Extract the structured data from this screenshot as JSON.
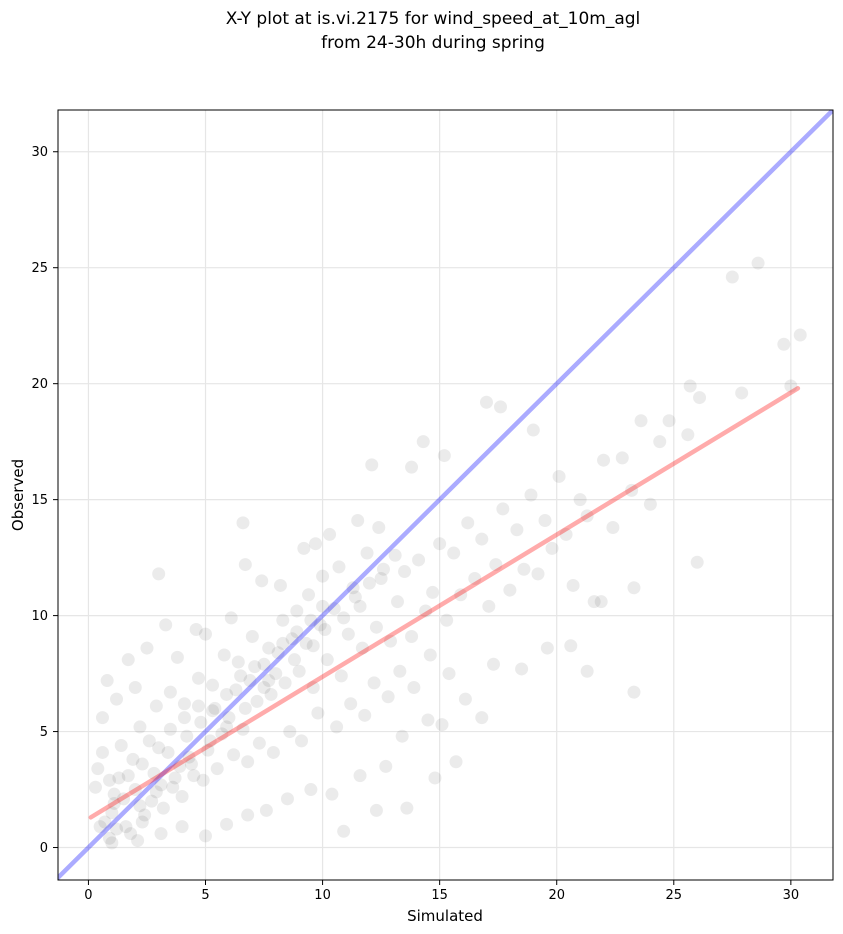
{
  "chart_data": {
    "type": "scatter",
    "title": "X-Y plot at is.vi.2175 for wind_speed_at_10m_agl",
    "subtitle": "from 24-30h during spring",
    "xlabel": "Simulated",
    "ylabel": "Observed",
    "xlim": [
      -1.3,
      31.8
    ],
    "ylim": [
      -1.4,
      31.8
    ],
    "xticks": [
      0,
      5,
      10,
      15,
      20,
      25,
      30
    ],
    "yticks": [
      0,
      5,
      10,
      15,
      20,
      25,
      30
    ],
    "grid": true,
    "point_color": "#000000",
    "point_alpha": 0.08,
    "series": [
      {
        "type": "scatter",
        "points": [
          [
            0.9,
            0.4
          ],
          [
            1.0,
            1.5
          ],
          [
            1.2,
            0.8
          ],
          [
            1.5,
            2.1
          ],
          [
            0.7,
            1.1
          ],
          [
            1.8,
            0.6
          ],
          [
            2.0,
            2.5
          ],
          [
            1.3,
            3.0
          ],
          [
            0.5,
            0.9
          ],
          [
            1.1,
            1.9
          ],
          [
            2.4,
            1.4
          ],
          [
            2.8,
            3.2
          ],
          [
            3.1,
            2.7
          ],
          [
            3.4,
            4.1
          ],
          [
            2.6,
            4.6
          ],
          [
            3.9,
            3.5
          ],
          [
            4.2,
            4.8
          ],
          [
            4.5,
            3.1
          ],
          [
            4.8,
            5.4
          ],
          [
            5.1,
            4.2
          ],
          [
            5.4,
            6.0
          ],
          [
            5.7,
            4.9
          ],
          [
            6.0,
            5.6
          ],
          [
            6.3,
            6.8
          ],
          [
            6.6,
            5.1
          ],
          [
            6.9,
            7.2
          ],
          [
            7.2,
            6.3
          ],
          [
            7.5,
            7.9
          ],
          [
            7.8,
            6.6
          ],
          [
            8.1,
            8.4
          ],
          [
            8.4,
            7.1
          ],
          [
            8.7,
            9.0
          ],
          [
            9.0,
            7.6
          ],
          [
            9.3,
            8.8
          ],
          [
            9.6,
            6.9
          ],
          [
            9.9,
            9.6
          ],
          [
            10.2,
            8.1
          ],
          [
            10.5,
            10.3
          ],
          [
            10.8,
            7.4
          ],
          [
            11.1,
            9.2
          ],
          [
            11.4,
            10.8
          ],
          [
            11.7,
            8.6
          ],
          [
            12.0,
            11.4
          ],
          [
            12.3,
            9.5
          ],
          [
            12.6,
            12.0
          ],
          [
            12.9,
            8.9
          ],
          [
            13.2,
            10.6
          ],
          [
            13.5,
            11.9
          ],
          [
            13.8,
            9.1
          ],
          [
            14.1,
            12.4
          ],
          [
            14.4,
            10.2
          ],
          [
            14.7,
            11.0
          ],
          [
            15.0,
            13.1
          ],
          [
            15.3,
            9.8
          ],
          [
            15.6,
            12.7
          ],
          [
            15.9,
            10.9
          ],
          [
            16.2,
            14.0
          ],
          [
            16.5,
            11.6
          ],
          [
            16.8,
            13.3
          ],
          [
            17.1,
            10.4
          ],
          [
            17.4,
            12.2
          ],
          [
            17.7,
            14.6
          ],
          [
            18.0,
            11.1
          ],
          [
            18.3,
            13.7
          ],
          [
            18.6,
            12.0
          ],
          [
            18.9,
            15.2
          ],
          [
            19.2,
            11.8
          ],
          [
            19.5,
            14.1
          ],
          [
            19.8,
            12.9
          ],
          [
            20.1,
            16.0
          ],
          [
            20.4,
            13.5
          ],
          [
            20.7,
            11.3
          ],
          [
            21.0,
            15.0
          ],
          [
            21.3,
            14.3
          ],
          [
            21.6,
            10.6
          ],
          [
            22.0,
            16.7
          ],
          [
            22.4,
            13.8
          ],
          [
            22.8,
            16.8
          ],
          [
            23.2,
            15.4
          ],
          [
            23.6,
            18.4
          ],
          [
            24.0,
            14.8
          ],
          [
            24.4,
            17.5
          ],
          [
            24.8,
            18.4
          ],
          [
            25.6,
            17.8
          ],
          [
            25.7,
            19.9
          ],
          [
            26.0,
            12.3
          ],
          [
            26.1,
            19.4
          ],
          [
            27.5,
            24.6
          ],
          [
            28.6,
            25.2
          ],
          [
            27.9,
            19.6
          ],
          [
            29.7,
            21.7
          ],
          [
            30.4,
            22.1
          ],
          [
            30.0,
            19.9
          ],
          [
            23.3,
            6.7
          ],
          [
            23.3,
            11.2
          ],
          [
            21.3,
            7.6
          ],
          [
            16.8,
            5.6
          ],
          [
            15.7,
            3.7
          ],
          [
            14.8,
            3.0
          ],
          [
            13.6,
            1.7
          ],
          [
            10.9,
            0.7
          ],
          [
            12.3,
            1.6
          ],
          [
            3.0,
            11.8
          ],
          [
            6.6,
            14.0
          ],
          [
            6.7,
            12.2
          ],
          [
            12.1,
            16.5
          ],
          [
            14.3,
            17.5
          ],
          [
            15.2,
            16.9
          ],
          [
            17.0,
            19.2
          ],
          [
            17.6,
            19.0
          ],
          [
            13.8,
            16.4
          ],
          [
            19.0,
            18.0
          ],
          [
            0.6,
            5.6
          ],
          [
            1.2,
            6.4
          ],
          [
            0.8,
            7.2
          ],
          [
            2.0,
            6.9
          ],
          [
            1.7,
            8.1
          ],
          [
            2.5,
            8.6
          ],
          [
            3.3,
            9.6
          ],
          [
            3.8,
            8.2
          ],
          [
            4.6,
            9.4
          ],
          [
            5.0,
            9.2
          ],
          [
            6.1,
            9.9
          ],
          [
            7.4,
            11.5
          ],
          [
            8.2,
            11.3
          ],
          [
            9.2,
            12.9
          ],
          [
            9.7,
            13.1
          ],
          [
            10.3,
            13.5
          ],
          [
            11.5,
            14.1
          ],
          [
            12.4,
            13.8
          ],
          [
            13.1,
            12.6
          ],
          [
            2.1,
            0.3
          ],
          [
            3.1,
            0.6
          ],
          [
            4.0,
            0.9
          ],
          [
            5.0,
            0.5
          ],
          [
            5.9,
            1.0
          ],
          [
            6.8,
            1.4
          ],
          [
            7.6,
            1.6
          ],
          [
            8.5,
            2.1
          ],
          [
            9.5,
            2.5
          ],
          [
            10.4,
            2.3
          ],
          [
            11.6,
            3.1
          ],
          [
            12.7,
            3.5
          ],
          [
            13.4,
            4.8
          ],
          [
            14.5,
            5.5
          ],
          [
            15.1,
            5.3
          ],
          [
            16.1,
            6.4
          ],
          [
            17.3,
            7.9
          ],
          [
            18.5,
            7.7
          ],
          [
            19.6,
            8.6
          ],
          [
            20.6,
            8.7
          ],
          [
            21.9,
            10.6
          ],
          [
            0.3,
            2.6
          ],
          [
            0.4,
            3.4
          ],
          [
            0.6,
            4.1
          ],
          [
            0.9,
            2.9
          ],
          [
            1.4,
            4.4
          ],
          [
            1.9,
            3.8
          ],
          [
            2.2,
            5.2
          ],
          [
            2.9,
            6.1
          ],
          [
            3.5,
            6.7
          ],
          [
            4.1,
            6.2
          ],
          [
            4.7,
            7.3
          ],
          [
            5.3,
            7.0
          ],
          [
            5.8,
            8.3
          ],
          [
            6.4,
            8.0
          ],
          [
            7.0,
            9.1
          ],
          [
            7.7,
            8.6
          ],
          [
            8.3,
            9.8
          ],
          [
            8.9,
            10.2
          ],
          [
            9.4,
            10.9
          ],
          [
            10.0,
            11.7
          ],
          [
            10.7,
            12.1
          ],
          [
            11.3,
            11.2
          ],
          [
            11.9,
            12.7
          ],
          [
            12.5,
            11.6
          ],
          [
            2.3,
            1.1
          ],
          [
            2.7,
            2.0
          ],
          [
            3.2,
            1.7
          ],
          [
            3.6,
            2.6
          ],
          [
            4.0,
            2.2
          ],
          [
            4.4,
            3.6
          ],
          [
            4.9,
            2.9
          ],
          [
            5.5,
            3.4
          ],
          [
            6.2,
            4.0
          ],
          [
            6.8,
            3.7
          ],
          [
            7.3,
            4.5
          ],
          [
            7.9,
            4.1
          ],
          [
            8.6,
            5.0
          ],
          [
            9.1,
            4.6
          ],
          [
            9.8,
            5.8
          ],
          [
            10.6,
            5.2
          ],
          [
            11.2,
            6.2
          ],
          [
            11.8,
            5.7
          ],
          [
            12.2,
            7.1
          ],
          [
            12.8,
            6.5
          ],
          [
            13.3,
            7.6
          ],
          [
            13.9,
            6.9
          ],
          [
            14.6,
            8.3
          ],
          [
            15.4,
            7.5
          ],
          [
            1.0,
            0.2
          ],
          [
            1.6,
            0.9
          ],
          [
            2.2,
            1.8
          ],
          [
            2.9,
            2.4
          ],
          [
            3.7,
            3.0
          ],
          [
            4.3,
            3.9
          ],
          [
            5.2,
            4.6
          ],
          [
            5.9,
            5.2
          ],
          [
            6.7,
            6.0
          ],
          [
            7.5,
            6.9
          ],
          [
            8.0,
            7.5
          ],
          [
            8.8,
            8.1
          ],
          [
            9.6,
            8.7
          ],
          [
            10.1,
            9.4
          ],
          [
            10.9,
            9.9
          ],
          [
            11.6,
            10.4
          ],
          [
            1.1,
            2.3
          ],
          [
            1.7,
            3.1
          ],
          [
            2.3,
            3.6
          ],
          [
            3.0,
            4.3
          ],
          [
            3.5,
            5.1
          ],
          [
            4.1,
            5.6
          ],
          [
            4.7,
            6.1
          ],
          [
            5.3,
            5.9
          ],
          [
            5.9,
            6.6
          ],
          [
            6.5,
            7.4
          ],
          [
            7.1,
            7.8
          ],
          [
            7.7,
            7.2
          ],
          [
            8.3,
            8.8
          ],
          [
            8.9,
            9.3
          ],
          [
            9.5,
            9.8
          ],
          [
            10.0,
            10.4
          ]
        ]
      }
    ],
    "lines": [
      {
        "name": "",
        "color": "#0000ff",
        "alpha": 0.33,
        "x": [
          -1.3,
          31.8
        ],
        "y": [
          -1.3,
          31.8
        ]
      },
      {
        "name": "",
        "color": "#ff0000",
        "alpha": 0.33,
        "x": [
          0.1,
          30.3
        ],
        "y": [
          1.3,
          19.8
        ]
      }
    ]
  }
}
